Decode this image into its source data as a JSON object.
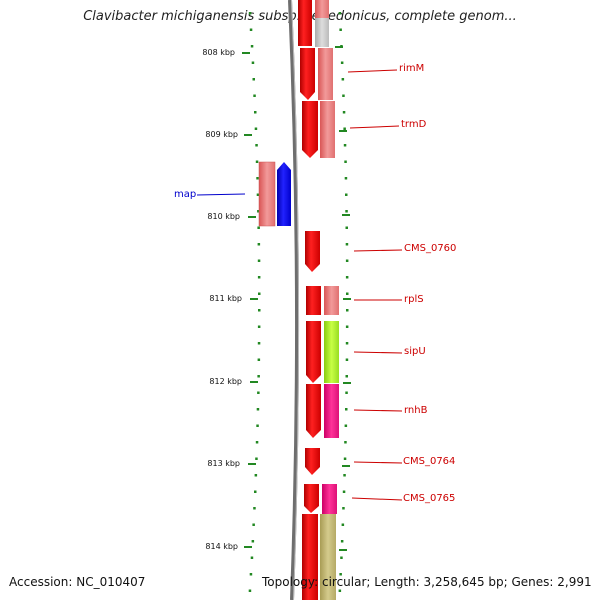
{
  "title": "Clavibacter michiganensis subsp. sepedonicus, complete genom...",
  "footer": {
    "accession": "Accession: NC_010407",
    "summary": "Topology: circular; Length: 3,258,645 bp; Genes: 2,991"
  },
  "kbp_labels": [
    "808 kbp",
    "809 kbp",
    "810 kbp",
    "811 kbp",
    "812 kbp",
    "813 kbp",
    "814 kbp"
  ],
  "genes": [
    {
      "name": "rimM",
      "color": "#cc0000"
    },
    {
      "name": "trmD",
      "color": "#cc0000"
    },
    {
      "name": "map",
      "color": "#0000cc"
    },
    {
      "name": "CMS_0760",
      "color": "#cc0000"
    },
    {
      "name": "rplS",
      "color": "#cc0000"
    },
    {
      "name": "sipU",
      "color": "#cc0000"
    },
    {
      "name": "rnhB",
      "color": "#cc0000"
    },
    {
      "name": "CMS_0764",
      "color": "#cc0000"
    },
    {
      "name": "CMS_0765",
      "color": "#cc0000"
    }
  ],
  "colors": {
    "forward_strand": "#ee0000",
    "reverse_strand": "#1010ee",
    "light_red": "#ee7777",
    "lime": "#aaee22",
    "magenta": "#ee1188",
    "olive": "#c2b870",
    "backbone": "#777777",
    "tick_green": "#228822"
  }
}
